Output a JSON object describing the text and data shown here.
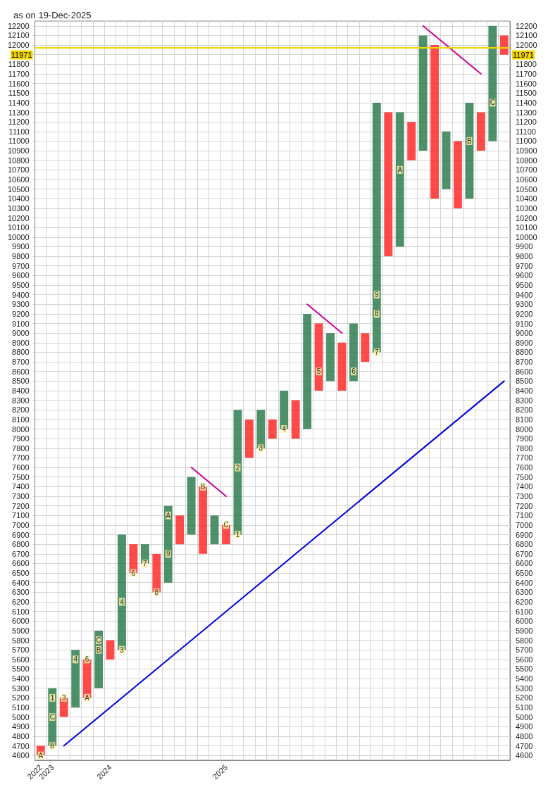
{
  "chart_data": {
    "type": "bar",
    "title": "as on 19-Dec-2025",
    "categories": [
      "2022",
      "2023",
      null,
      null,
      null,
      null,
      "2024",
      null,
      null,
      null,
      null,
      null,
      null,
      null,
      null,
      null,
      "2025",
      null,
      null,
      null,
      null,
      null,
      null,
      null,
      null,
      null,
      null,
      null,
      null,
      null,
      null,
      null,
      null,
      null,
      null,
      null,
      null,
      null,
      null,
      null,
      null
    ],
    "series": [
      {
        "base": [
          4600,
          4700,
          5000,
          5100,
          5200,
          5300,
          5600,
          5700,
          6500,
          6600,
          6300,
          6400,
          6800,
          6900,
          6700,
          6800,
          6800,
          6900,
          7700,
          7800,
          7900,
          8000,
          7900,
          8000,
          8400,
          8500,
          8400,
          8500,
          8700,
          8800,
          9800,
          9900,
          10800,
          10900,
          10400,
          10500,
          10300,
          10400,
          10900,
          11000,
          11900
        ],
        "values": [
          100,
          600,
          200,
          600,
          400,
          600,
          200,
          1200,
          300,
          200,
          400,
          800,
          300,
          600,
          700,
          300,
          200,
          1300,
          400,
          400,
          200,
          400,
          400,
          1200,
          700,
          500,
          500,
          600,
          300,
          2600,
          1500,
          1400,
          400,
          1200,
          1600,
          600,
          700,
          1000,
          400,
          1200,
          200
        ],
        "colors": [
          "#ff2a2a",
          "#2e7d4f",
          "#ff2a2a",
          "#2e7d4f",
          "#ff2a2a",
          "#2e7d4f",
          "#ff2a2a",
          "#2e7d4f",
          "#ff2a2a",
          "#2e7d4f",
          "#ff2a2a",
          "#2e7d4f",
          "#ff2a2a",
          "#2e7d4f",
          "#ff2a2a",
          "#2e7d4f",
          "#ff2a2a",
          "#2e7d4f",
          "#ff2a2a",
          "#2e7d4f",
          "#ff2a2a",
          "#2e7d4f",
          "#ff2a2a",
          "#2e7d4f",
          "#ff2a2a",
          "#2e7d4f",
          "#ff2a2a",
          "#2e7d4f",
          "#ff2a2a",
          "#2e7d4f",
          "#ff2a2a",
          "#2e7d4f",
          "#ff2a2a",
          "#2e7d4f",
          "#ff2a2a",
          "#2e7d4f",
          "#ff2a2a",
          "#2e7d4f",
          "#ff2a2a",
          "#2e7d4f",
          "#ff2a2a"
        ]
      },
      {
        "type": "scatter",
        "name": "A",
        "color": "#fff3a8",
        "marker": "square",
        "values": [
          4600,
          null,
          null,
          null,
          5200,
          null,
          null,
          null,
          null,
          null,
          null,
          7100,
          null,
          null,
          null,
          null,
          null,
          null,
          null,
          null,
          null,
          null,
          null,
          null,
          null,
          null,
          null,
          null,
          null,
          null,
          null,
          10700,
          null,
          null,
          null,
          null,
          null,
          null,
          null,
          null,
          null
        ]
      },
      {
        "type": "scatter",
        "name": "B",
        "color": "#fff3a8",
        "marker": "square",
        "values": [
          null,
          4700,
          null,
          null,
          null,
          5700,
          null,
          null,
          null,
          null,
          null,
          null,
          null,
          null,
          7400,
          null,
          null,
          null,
          null,
          null,
          null,
          null,
          null,
          null,
          null,
          null,
          null,
          null,
          null,
          null,
          null,
          null,
          null,
          null,
          null,
          null,
          null,
          11000,
          null,
          null,
          null
        ]
      },
      {
        "type": "scatter",
        "name": "C",
        "color": "#fff3a8",
        "marker": "square",
        "values": [
          null,
          5000,
          null,
          null,
          null,
          5800,
          null,
          null,
          null,
          null,
          null,
          null,
          null,
          null,
          null,
          null,
          7000,
          null,
          null,
          null,
          null,
          null,
          null,
          null,
          null,
          null,
          null,
          null,
          null,
          null,
          null,
          null,
          null,
          null,
          null,
          null,
          null,
          null,
          null,
          11400,
          null
        ]
      },
      {
        "type": "scatter",
        "name": "1",
        "color": "#fff3a8",
        "marker": "square",
        "values": [
          null,
          5200,
          null,
          null,
          null,
          null,
          null,
          null,
          null,
          null,
          null,
          null,
          null,
          null,
          null,
          null,
          null,
          6900,
          null,
          null,
          null,
          null,
          null,
          null,
          null,
          null,
          null,
          null,
          null,
          null,
          null,
          null,
          null,
          null,
          null,
          null,
          null,
          null,
          null,
          null,
          null
        ]
      },
      {
        "type": "scatter",
        "name": "2",
        "color": "#fff3a8",
        "marker": "square",
        "values": [
          null,
          null,
          null,
          null,
          null,
          null,
          null,
          null,
          null,
          null,
          null,
          null,
          null,
          null,
          null,
          null,
          null,
          7600,
          null,
          null,
          null,
          null,
          null,
          null,
          null,
          null,
          null,
          null,
          null,
          null,
          null,
          null,
          null,
          null,
          null,
          null,
          null,
          null,
          null,
          null,
          null
        ]
      },
      {
        "type": "scatter",
        "name": "3",
        "color": "#fff3a8",
        "marker": "square",
        "values": [
          null,
          null,
          5200,
          null,
          null,
          null,
          null,
          5700,
          null,
          null,
          null,
          null,
          null,
          null,
          null,
          null,
          null,
          null,
          null,
          7800,
          null,
          null,
          null,
          null,
          null,
          null,
          null,
          null,
          null,
          null,
          null,
          null,
          null,
          null,
          null,
          null,
          null,
          null,
          null,
          null,
          null
        ]
      },
      {
        "type": "scatter",
        "name": "4",
        "color": "#fff3a8",
        "marker": "square",
        "values": [
          null,
          null,
          null,
          5600,
          null,
          null,
          null,
          6200,
          null,
          null,
          null,
          null,
          null,
          null,
          null,
          null,
          null,
          null,
          null,
          null,
          null,
          8000,
          null,
          null,
          null,
          null,
          null,
          null,
          null,
          null,
          null,
          null,
          null,
          null,
          null,
          null,
          null,
          null,
          null,
          null,
          null
        ]
      },
      {
        "type": "scatter",
        "name": "5",
        "color": "#fff3a8",
        "marker": "square",
        "values": [
          null,
          null,
          null,
          null,
          null,
          null,
          null,
          null,
          null,
          null,
          null,
          null,
          null,
          null,
          null,
          null,
          null,
          null,
          null,
          null,
          null,
          null,
          null,
          null,
          8600,
          null,
          null,
          null,
          null,
          null,
          null,
          null,
          null,
          null,
          null,
          null,
          null,
          null,
          null,
          null,
          null
        ]
      },
      {
        "type": "scatter",
        "name": "6",
        "color": "#fff3a8",
        "marker": "square",
        "values": [
          null,
          null,
          null,
          null,
          5600,
          null,
          null,
          null,
          6500,
          null,
          null,
          null,
          null,
          null,
          null,
          null,
          null,
          null,
          null,
          null,
          null,
          null,
          null,
          null,
          null,
          null,
          null,
          8600,
          null,
          null,
          null,
          null,
          null,
          null,
          null,
          null,
          null,
          null,
          null,
          null,
          null
        ]
      },
      {
        "type": "scatter",
        "name": "7",
        "color": "#fff3a8",
        "marker": "square",
        "values": [
          null,
          null,
          null,
          null,
          null,
          null,
          null,
          null,
          null,
          6600,
          null,
          null,
          null,
          null,
          null,
          null,
          null,
          null,
          null,
          null,
          null,
          null,
          null,
          null,
          null,
          null,
          null,
          null,
          null,
          8800,
          null,
          null,
          null,
          null,
          null,
          null,
          null,
          null,
          null,
          null,
          null
        ]
      },
      {
        "type": "scatter",
        "name": "8",
        "color": "#fff3a8",
        "marker": "square",
        "values": [
          null,
          null,
          null,
          null,
          null,
          null,
          null,
          null,
          null,
          null,
          6300,
          null,
          null,
          null,
          null,
          null,
          null,
          null,
          null,
          null,
          null,
          null,
          null,
          null,
          null,
          null,
          null,
          null,
          null,
          9200,
          null,
          null,
          null,
          null,
          null,
          null,
          null,
          null,
          null,
          null,
          null
        ]
      },
      {
        "type": "scatter",
        "name": "9",
        "color": "#fff3a8",
        "marker": "square",
        "values": [
          null,
          null,
          null,
          null,
          null,
          null,
          null,
          null,
          null,
          null,
          null,
          6700,
          null,
          null,
          null,
          null,
          null,
          null,
          null,
          null,
          null,
          null,
          null,
          null,
          null,
          null,
          null,
          null,
          null,
          9400,
          null,
          null,
          null,
          null,
          null,
          null,
          null,
          null,
          null,
          null,
          null
        ]
      },
      {
        "type": "line",
        "color": "#0000dd",
        "values": [
          null,
          null,
          4700,
          null,
          null,
          null,
          null,
          null,
          null,
          null,
          null,
          null,
          null,
          null,
          null,
          null,
          null,
          null,
          null,
          null,
          null,
          null,
          null,
          null,
          null,
          null,
          null,
          null,
          null,
          null,
          null,
          null,
          null,
          null,
          null,
          null,
          null,
          null,
          null,
          null,
          8500
        ]
      },
      {
        "type": "line",
        "color": "#cc0099",
        "values": [
          null,
          null,
          null,
          null,
          null,
          null,
          null,
          null,
          null,
          null,
          null,
          null,
          null,
          7600,
          null,
          null,
          7300,
          null,
          null,
          null,
          null,
          null,
          null,
          null,
          null,
          null,
          null,
          null,
          null,
          null,
          null,
          null,
          null,
          null,
          null,
          null,
          null,
          null,
          null,
          null,
          null
        ]
      },
      {
        "type": "line",
        "color": "#cc0099",
        "values": [
          null,
          null,
          null,
          null,
          null,
          null,
          null,
          null,
          null,
          null,
          null,
          null,
          null,
          null,
          null,
          null,
          null,
          null,
          null,
          null,
          null,
          null,
          null,
          9300,
          null,
          null,
          9000,
          null,
          null,
          null,
          null,
          null,
          null,
          null,
          null,
          null,
          null,
          null,
          null,
          null,
          null
        ]
      },
      {
        "type": "line",
        "color": "#cc0099",
        "values": [
          null,
          null,
          null,
          null,
          null,
          null,
          null,
          null,
          null,
          null,
          null,
          null,
          null,
          null,
          null,
          null,
          null,
          null,
          null,
          null,
          null,
          null,
          null,
          null,
          null,
          null,
          null,
          null,
          null,
          null,
          null,
          null,
          null,
          12200,
          null,
          null,
          null,
          null,
          11700,
          null,
          null
        ]
      }
    ],
    "ylim": [
      4550,
      12250
    ],
    "yticks": [
      4600,
      4700,
      4800,
      4900,
      5000,
      5100,
      5200,
      5300,
      5400,
      5500,
      5600,
      5700,
      5800,
      5900,
      6000,
      6100,
      6200,
      6300,
      6400,
      6500,
      6600,
      6700,
      6800,
      6900,
      7000,
      7100,
      7200,
      7300,
      7400,
      7500,
      7600,
      7700,
      7800,
      7900,
      8000,
      8100,
      8200,
      8300,
      8400,
      8500,
      8600,
      8700,
      8800,
      8900,
      9000,
      9100,
      9200,
      9300,
      9400,
      9500,
      9600,
      9700,
      9800,
      9900,
      10000,
      10100,
      10200,
      10300,
      10400,
      10500,
      10600,
      10700,
      10800,
      10900,
      11000,
      11100,
      11200,
      11300,
      11400,
      11500,
      11600,
      11700,
      11800,
      {
        "value": 11900,
        "label": null
      },
      12000,
      12100,
      12200
    ],
    "y2lim": [
      4550,
      12250
    ],
    "y2ticks": [
      4600,
      4700,
      4800,
      4900,
      5000,
      5100,
      5200,
      5300,
      5400,
      5500,
      5600,
      5700,
      5800,
      5900,
      6000,
      6100,
      6200,
      6300,
      6400,
      6500,
      6600,
      6700,
      6800,
      6900,
      7000,
      7100,
      7200,
      7300,
      7400,
      7500,
      7600,
      7700,
      7800,
      7900,
      8000,
      8100,
      8200,
      8300,
      8400,
      8500,
      8600,
      8700,
      8800,
      8900,
      9000,
      9100,
      9200,
      9300,
      9400,
      9500,
      9600,
      9700,
      9800,
      9900,
      10000,
      10100,
      10200,
      10300,
      10400,
      10500,
      10600,
      10700,
      10800,
      10900,
      11000,
      11100,
      11200,
      11300,
      11400,
      11500,
      11600,
      11700,
      11800,
      {
        "value": 11900,
        "label": null
      },
      12000,
      12100,
      12200
    ],
    "ref_lines": [
      {
        "axis": "y",
        "value": 11971,
        "label": "11971",
        "color": "#f2d600"
      }
    ],
    "grid": true,
    "marker": "none",
    "line_style": "solid"
  }
}
